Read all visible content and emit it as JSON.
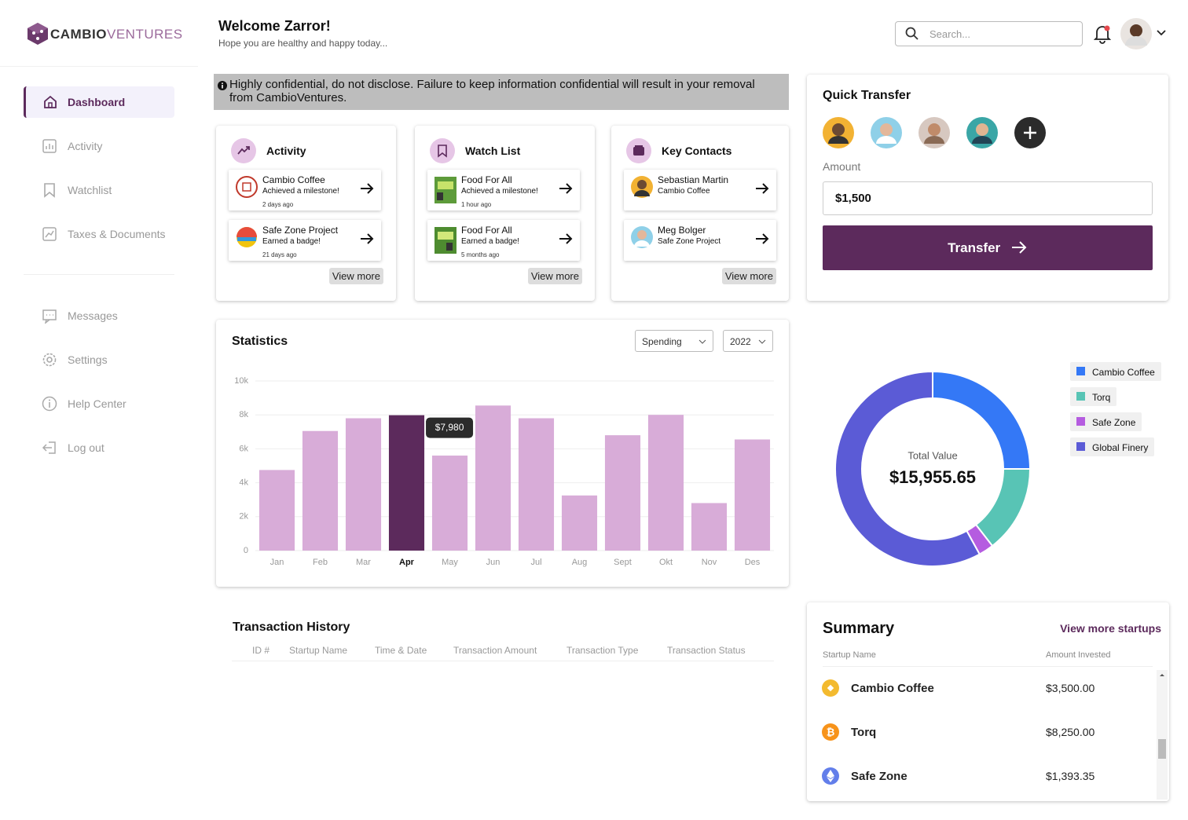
{
  "sidebar": {
    "brand": [
      "CAMBIO",
      "VENTURES"
    ],
    "nav": [
      "Dashboard",
      "Activity",
      "Watchlist",
      "Taxes & Documents"
    ],
    "nav_secondary": [
      "Messages",
      "Settings",
      "Help Center",
      "Log out"
    ]
  },
  "header": {
    "title": "Welcome Zarror!",
    "subtitle": "Hope you are healthy and happy today...",
    "search_placeholder": "Search..."
  },
  "notice": "Highly confidential, do not disclose. Failure to keep information confidential will result in your removal from CambioVentures.",
  "cards": [
    {
      "title": "Activity",
      "items": [
        {
          "title": "Cambio Coffee",
          "subtitle": "Achieved a milestone!",
          "time": "2 days ago"
        },
        {
          "title": "Safe Zone Project",
          "subtitle": "Earned a badge!",
          "time": "21 days ago"
        }
      ],
      "button": "View more"
    },
    {
      "title": "Watch List",
      "items": [
        {
          "title": "Food For All",
          "subtitle": "Achieved a milestone!",
          "time": "1 hour ago"
        },
        {
          "title": "Food For All",
          "subtitle": "Earned a badge!",
          "time": "5 months ago"
        }
      ],
      "button": "View more"
    },
    {
      "title": "Key Contacts",
      "items": [
        {
          "title": "Sebastian Martin",
          "subtitle": "Cambio Coffee"
        },
        {
          "title": "Meg Bolger",
          "subtitle": "Safe Zone Project"
        }
      ],
      "button": "View more"
    }
  ],
  "quick_transfer": {
    "title": "Quick Transfer",
    "amount_label": "Amount",
    "amount": "$1,500",
    "button": "Transfer"
  },
  "statistics": {
    "title": "Statistics",
    "filters": [
      "Spending",
      "2022"
    ],
    "chart": {
      "type": "bar",
      "categories": [
        "Jan",
        "Feb",
        "Mar",
        "Apr",
        "May",
        "Jun",
        "Jul",
        "Aug",
        "Sept",
        "Okt",
        "Nov",
        "Des"
      ],
      "values": [
        4750,
        7050,
        7800,
        7980,
        5600,
        8550,
        7800,
        3250,
        6800,
        8000,
        2800,
        6550
      ],
      "value_labels": [
        null,
        null,
        null,
        "$7,980",
        null,
        null,
        null,
        null,
        null,
        null,
        null,
        null
      ],
      "color": "#d8acd8",
      "highlight_color": "#5c2a5c",
      "ylim": [
        0,
        10000
      ],
      "yticks": [
        0,
        {
          "value": 2000,
          "label": "2k"
        },
        {
          "value": 4000,
          "label": "4k"
        },
        {
          "value": 6000,
          "label": "6k"
        },
        {
          "value": 8000,
          "label": "8k"
        },
        {
          "value": 10000,
          "label": "10k"
        }
      ],
      "grid": true
    }
  },
  "portfolio": {
    "chart": {
      "type": "pie",
      "center_label": "Total Value",
      "center_value": "$15,955.65",
      "categories": [
        "Cambio Coffee",
        "Torq",
        "Safe Zone",
        "Global Finery"
      ],
      "values": [
        25,
        14.5,
        2.5,
        58
      ],
      "colors": [
        "#3478f6",
        "#58c4b5",
        "#b55ce0",
        "#5b5bd6"
      ]
    }
  },
  "transaction_history": {
    "title": "Transaction History",
    "columns": [
      "ID #",
      "Startup Name",
      "Time & Date",
      "Transaction Amount",
      "Transaction Type",
      "Transaction Status"
    ]
  },
  "summary": {
    "title": "Summary",
    "link": "View more startups",
    "columns": [
      "Startup Name",
      "Amount Invested"
    ],
    "rows": [
      [
        "Cambio Coffee",
        "$3,500.00"
      ],
      [
        "Torq",
        "$8,250.00"
      ],
      [
        "Safe Zone",
        "$1,393.35"
      ]
    ]
  }
}
